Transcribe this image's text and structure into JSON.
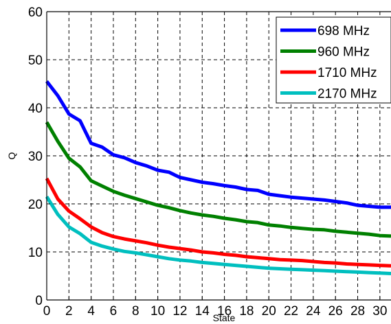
{
  "chart_data": {
    "type": "line",
    "xlabel": "State",
    "ylabel": "Q",
    "xlim": [
      0,
      31
    ],
    "ylim": [
      0,
      60
    ],
    "x_ticks": [
      0,
      2,
      4,
      6,
      8,
      10,
      12,
      14,
      16,
      18,
      20,
      22,
      24,
      26,
      28,
      30
    ],
    "y_ticks": [
      0,
      10,
      20,
      30,
      40,
      50,
      60
    ],
    "grid": true,
    "legend_position": "top-right",
    "x": [
      0,
      1,
      2,
      3,
      4,
      5,
      6,
      7,
      8,
      9,
      10,
      11,
      12,
      13,
      14,
      15,
      16,
      17,
      18,
      19,
      20,
      21,
      22,
      23,
      24,
      25,
      26,
      27,
      28,
      29,
      30,
      31
    ],
    "series": [
      {
        "name": "698 MHz",
        "color": "#0000ff",
        "values": [
          45.5,
          42.5,
          38.7,
          37.3,
          32.6,
          31.8,
          30.2,
          29.6,
          28.6,
          27.9,
          27.0,
          26.6,
          25.5,
          25.0,
          24.5,
          24.2,
          23.8,
          23.5,
          23.0,
          22.8,
          22.0,
          21.7,
          21.4,
          21.2,
          21.0,
          20.8,
          20.5,
          20.2,
          19.7,
          19.5,
          19.3,
          19.3
        ]
      },
      {
        "name": "960 MHz",
        "color": "#008000",
        "values": [
          37.0,
          33.0,
          29.5,
          27.7,
          24.8,
          23.7,
          22.6,
          21.8,
          21.1,
          20.4,
          19.7,
          19.2,
          18.6,
          18.1,
          17.7,
          17.4,
          17.0,
          16.7,
          16.3,
          16.1,
          15.6,
          15.4,
          15.1,
          14.9,
          14.7,
          14.6,
          14.3,
          14.1,
          13.9,
          13.7,
          13.4,
          13.3
        ]
      },
      {
        "name": "1710 MHz",
        "color": "#ff0000",
        "values": [
          25.3,
          21.0,
          18.5,
          16.9,
          15.2,
          14.0,
          13.2,
          12.7,
          12.3,
          11.9,
          11.4,
          11.0,
          10.7,
          10.4,
          10.0,
          9.8,
          9.5,
          9.3,
          9.0,
          8.8,
          8.6,
          8.4,
          8.3,
          8.2,
          8.0,
          7.8,
          7.7,
          7.5,
          7.4,
          7.3,
          7.2,
          7.1
        ]
      },
      {
        "name": "2170 MHz",
        "color": "#00bfbf",
        "values": [
          21.5,
          17.8,
          15.2,
          13.8,
          12.0,
          11.2,
          10.6,
          10.1,
          9.8,
          9.4,
          9.0,
          8.6,
          8.3,
          8.1,
          7.8,
          7.6,
          7.4,
          7.2,
          7.0,
          6.8,
          6.6,
          6.5,
          6.4,
          6.3,
          6.2,
          6.1,
          6.0,
          5.9,
          5.8,
          5.7,
          5.6,
          5.5
        ]
      }
    ]
  }
}
